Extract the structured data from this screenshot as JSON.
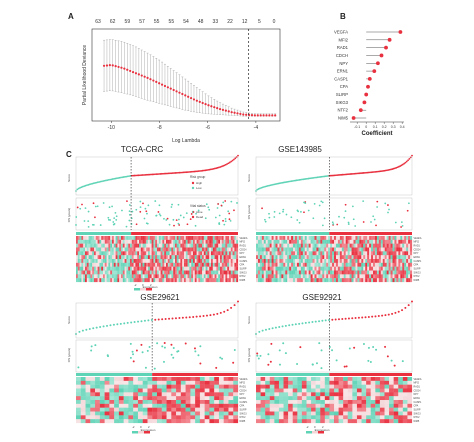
{
  "panels": {
    "a": "A",
    "b": "B",
    "c": "C"
  },
  "colors": {
    "red": "#e8303f",
    "teal": "#5fd3b6",
    "grey": "#9a9a9a",
    "dark": "#222222",
    "heat_high": "#e8303f",
    "heat_mid": "#ffffff",
    "heat_low": "#5fd3b6"
  },
  "chart_data": [
    {
      "type": "line",
      "panel": "A",
      "xlabel": "Log Lambda",
      "ylabel": "Partial Likelihood Deviance",
      "xticks": [
        "-10",
        "-8",
        "-6",
        "-4"
      ],
      "xlim": [
        -10.8,
        -3.0
      ],
      "top_ticks": [
        "63",
        "62",
        "59",
        "57",
        "55",
        "55",
        "54",
        "48",
        "33",
        "22",
        "12",
        "5",
        "0"
      ],
      "vline_x": -4.3,
      "x": [
        -10.3,
        -10.0,
        -9.5,
        -9.0,
        -8.5,
        -8.0,
        -7.5,
        -7.0,
        -6.5,
        -6.0,
        -5.5,
        -5.0,
        -4.5,
        -4.0,
        -3.5,
        -3.2
      ],
      "y": [
        0.64,
        0.65,
        0.61,
        0.55,
        0.49,
        0.42,
        0.35,
        0.28,
        0.21,
        0.15,
        0.1,
        0.06,
        0.03,
        0.02,
        0.02,
        0.02
      ],
      "error_upper": [
        0.96,
        0.97,
        0.94,
        0.88,
        0.8,
        0.71,
        0.6,
        0.49,
        0.38,
        0.27,
        0.18,
        0.11,
        0.06,
        0.04,
        0.04,
        0.04
      ],
      "error_lower": [
        0.32,
        0.33,
        0.3,
        0.26,
        0.21,
        0.17,
        0.13,
        0.09,
        0.06,
        0.04,
        0.03,
        0.02,
        0.01,
        0.01,
        0.01,
        0.01
      ],
      "ylim": [
        0,
        1.0
      ]
    },
    {
      "type": "dot-plot",
      "panel": "B",
      "xlabel": "Coefficient",
      "genes": [
        "VEGFA",
        "MFI2",
        "RAD1",
        "CDCH",
        "NPY",
        "ERN1",
        "CASP1",
        "CPA",
        "SLIRP",
        "SIKG3",
        "NTF2",
        "NIM5"
      ],
      "values": [
        0.38,
        0.26,
        0.22,
        0.17,
        0.13,
        0.09,
        0.04,
        0.02,
        0.0,
        -0.02,
        -0.06,
        -0.14
      ],
      "xticks": [
        "-0.1",
        "0",
        "0.1",
        "0.2",
        "0.3",
        "0.4"
      ],
      "xlim": [
        -0.18,
        0.42
      ]
    },
    {
      "type": "risk-plot",
      "panel": "C",
      "title": "TCGA-CRC",
      "score_label": "Score",
      "time_label": "OS (years)",
      "legend_title_1": "Risk group",
      "legend_items_1": [
        "High",
        "Low"
      ],
      "legend_title_2": "Vital status",
      "legend_items_2": [
        "Alive",
        "Dead"
      ],
      "heat_label": "Expression",
      "heat_ticks": [
        "-2",
        "0",
        "2"
      ],
      "genes": [
        "VEGFA",
        "MFI2",
        "RAD1",
        "CDCH",
        "NPY",
        "ERN1",
        "CASP1",
        "CPA",
        "SLIRP",
        "SIKG3",
        "NTF2",
        "NIM5"
      ]
    },
    {
      "type": "risk-plot",
      "panel": "C",
      "title": "GSE143985",
      "score_label": "Score",
      "time_label": "OS (years)",
      "genes": [
        "VEGFA",
        "MFI2",
        "RAD1",
        "CDCH",
        "NPY",
        "ERN1",
        "CASP1",
        "CPA",
        "SLIRP",
        "SIKG3",
        "NTF2",
        "NIM5"
      ]
    },
    {
      "type": "risk-plot",
      "panel": "C",
      "title": "GSE29621",
      "score_label": "Score",
      "time_label": "OS (years)",
      "heat_label": "Expression",
      "heat_ticks": [
        "-2",
        "0",
        "2"
      ],
      "genes": [
        "VEGFA",
        "MFI2",
        "RAD1",
        "CDCH",
        "NPY",
        "ERN1",
        "CASP1",
        "CPA",
        "SLIRP",
        "SIKG3",
        "NTF2",
        "NIM5"
      ]
    },
    {
      "type": "risk-plot",
      "panel": "C",
      "title": "GSE92921",
      "score_label": "Score",
      "time_label": "OS (years)",
      "heat_label": "Expression",
      "heat_ticks": [
        "-2",
        "0",
        "2"
      ],
      "genes": [
        "VEGFA",
        "MFI2",
        "RAD1",
        "CDCH",
        "NPY",
        "ERN1",
        "CASP1",
        "CPA",
        "SLIRP",
        "SIKG3",
        "NTF2",
        "NIM5"
      ]
    }
  ]
}
